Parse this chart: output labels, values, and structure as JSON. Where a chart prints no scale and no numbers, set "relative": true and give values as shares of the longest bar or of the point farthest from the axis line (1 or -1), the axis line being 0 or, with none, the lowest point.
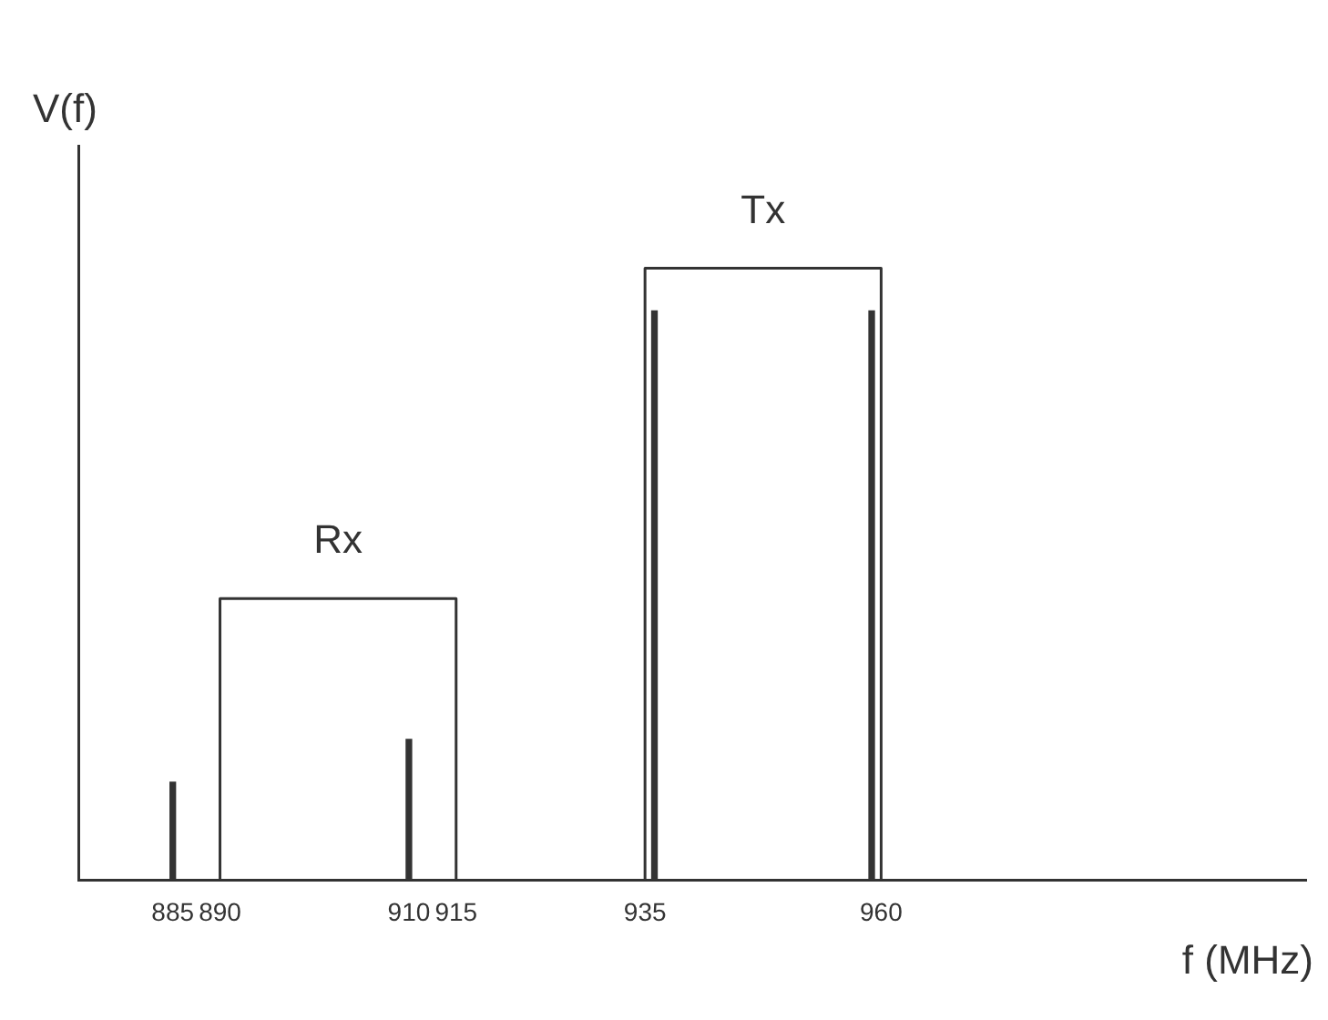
{
  "chart_data": {
    "type": "line",
    "relative": true,
    "xlabel": "f (MHz)",
    "ylabel": "V(f)",
    "xlim": [
      875,
      1005
    ],
    "xticks": [
      885,
      890,
      910,
      915,
      935,
      960
    ],
    "grid": false,
    "legend": false,
    "marker": "none",
    "line_style": "solid",
    "series": [
      {
        "name": "Rx",
        "color": "#333333",
        "x": [
          890,
          890,
          915,
          915
        ],
        "values": [
          0,
          0.46,
          0.46,
          0
        ]
      },
      {
        "name": "Tx",
        "color": "#333333",
        "x": [
          935,
          935,
          960,
          960
        ],
        "values": [
          0,
          1,
          1,
          0
        ]
      },
      {
        "type": "bar",
        "color": "#333333",
        "x": [
          885,
          910,
          936,
          959
        ],
        "values": [
          0.16,
          0.23,
          0.93,
          0.93
        ]
      }
    ]
  }
}
